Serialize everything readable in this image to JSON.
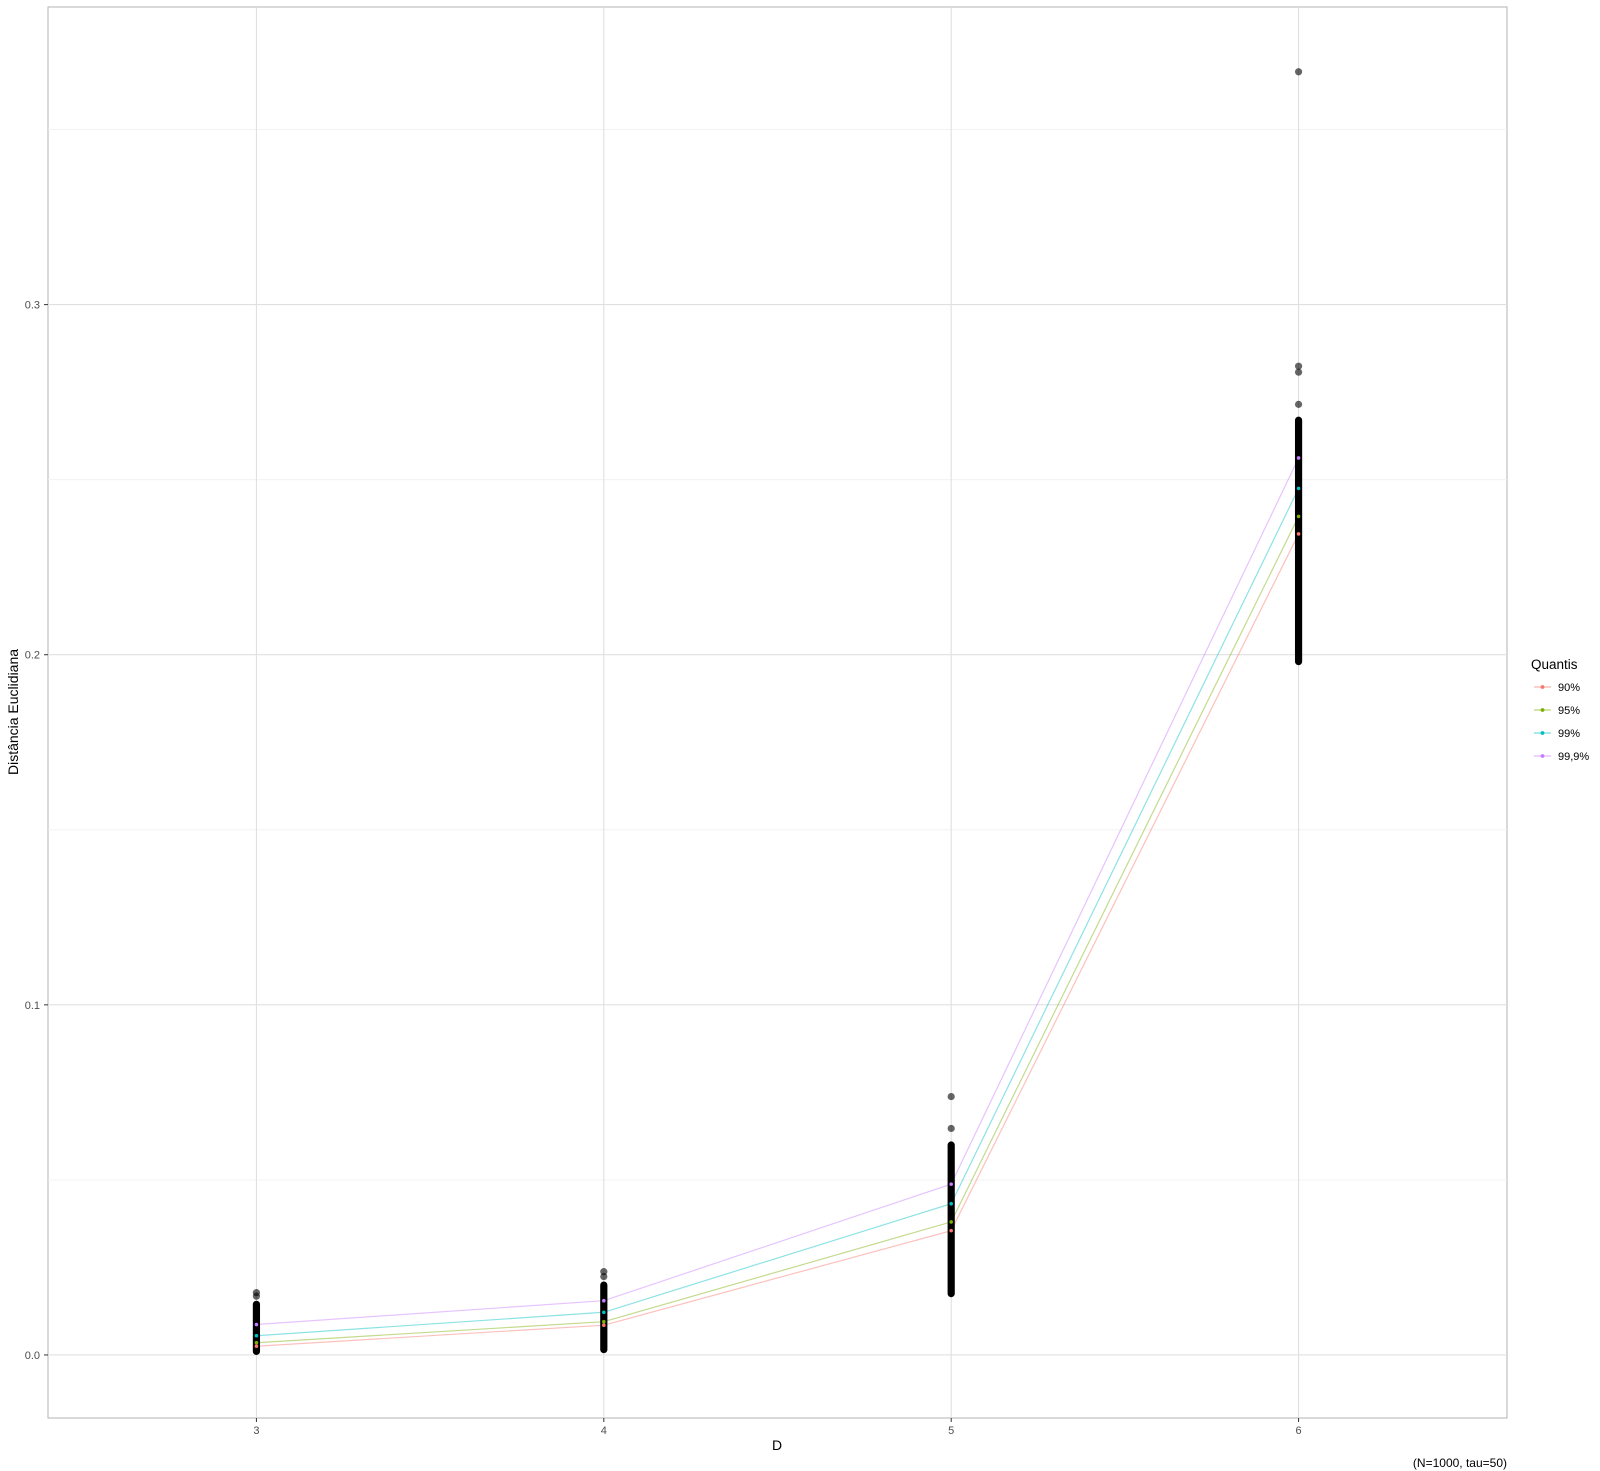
{
  "chart_data": {
    "type": "scatter",
    "title": "",
    "xlabel": "D",
    "ylabel": "Distância Euclidiana",
    "caption": "(N=1000, tau=50)",
    "categories": [
      "3",
      "4",
      "5",
      "6"
    ],
    "xlim": [
      2.4,
      6.6
    ],
    "ylim": [
      -0.018,
      0.385
    ],
    "y_ticks": [
      0.0,
      0.1,
      0.2,
      0.3
    ],
    "y_tick_labels": [
      "0.0",
      "0.1",
      "0.2",
      "0.3"
    ],
    "grid": true,
    "points": {
      "color": "#000000",
      "ranges": [
        {
          "x": 3,
          "min": 0.0,
          "max": 0.0155
        },
        {
          "x": 4,
          "min": 0.0005,
          "max": 0.021
        },
        {
          "x": 5,
          "min": 0.0165,
          "max": 0.061
        },
        {
          "x": 6,
          "min": 0.197,
          "max": 0.268
        }
      ],
      "outliers": [
        {
          "x": 3,
          "y": 0.0168
        },
        {
          "x": 3,
          "y": 0.0178
        },
        {
          "x": 4,
          "y": 0.0224
        },
        {
          "x": 4,
          "y": 0.0238
        },
        {
          "x": 5,
          "y": 0.0647
        },
        {
          "x": 5,
          "y": 0.0738
        },
        {
          "x": 6,
          "y": 0.2715
        },
        {
          "x": 6,
          "y": 0.2807
        },
        {
          "x": 6,
          "y": 0.2824
        },
        {
          "x": 6,
          "y": 0.3665
        }
      ]
    },
    "legend": {
      "title": "Quantis",
      "position": "right"
    },
    "series": [
      {
        "name": "90%",
        "color": "#F8766D",
        "values": [
          0.0025,
          0.0085,
          0.0355,
          0.2345
        ]
      },
      {
        "name": "95%",
        "color": "#7CAE00",
        "values": [
          0.0035,
          0.0095,
          0.038,
          0.2395
        ]
      },
      {
        "name": "99%",
        "color": "#00BFC4",
        "values": [
          0.0055,
          0.0122,
          0.0432,
          0.2475
        ]
      },
      {
        "name": "99,9%",
        "color": "#C77CFF",
        "values": [
          0.0087,
          0.0155,
          0.0488,
          0.2562
        ]
      }
    ]
  }
}
